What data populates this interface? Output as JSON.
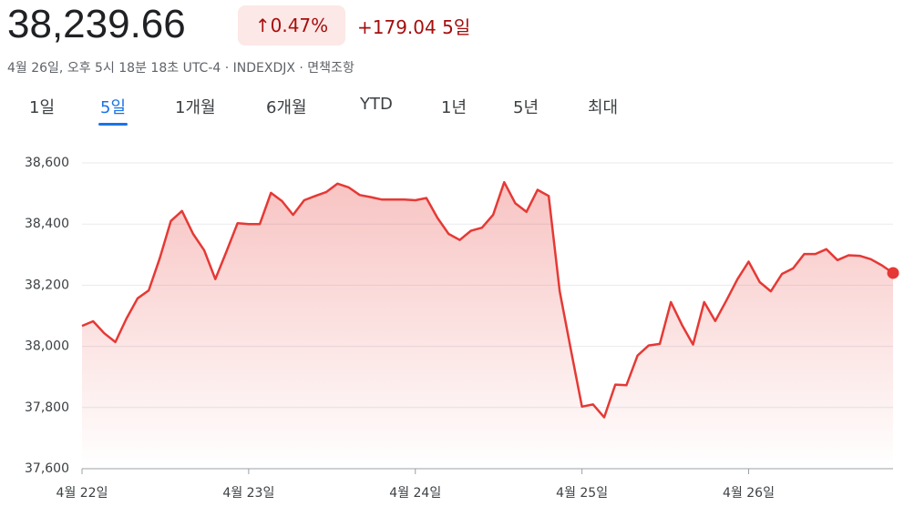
{
  "header": {
    "price": "38,239.66",
    "change_pct": "0.47%",
    "change_abs": "+179.04",
    "period": "5일",
    "meta": "4월 26일, 오후 5시 18분 18초 UTC-4 · INDEXDJX · 면책조항"
  },
  "tabs": [
    "1일",
    "5일",
    "1개월",
    "6개월",
    "YTD",
    "1년",
    "5년",
    "최대"
  ],
  "active_tab": 1,
  "chart_data": {
    "type": "line",
    "color": "#e53935",
    "grid": true,
    "categories": [
      "4월 22일",
      null,
      null,
      null,
      null,
      null,
      null,
      null,
      null,
      null,
      null,
      null,
      null,
      null,
      null,
      "4월 23일",
      null,
      null,
      null,
      null,
      null,
      null,
      null,
      null,
      null,
      null,
      null,
      null,
      null,
      null,
      "4월 24일",
      null,
      null,
      null,
      null,
      null,
      null,
      null,
      null,
      null,
      null,
      null,
      null,
      null,
      null,
      "4월 25일",
      null,
      null,
      null,
      null,
      null,
      null,
      null,
      null,
      null,
      null,
      null,
      null,
      null,
      null,
      "4월 26일",
      null,
      null,
      null,
      null,
      null,
      null,
      null,
      null,
      null,
      null,
      null,
      null,
      null
    ],
    "values": [
      38067,
      38082,
      38043,
      38014,
      38091,
      38157,
      38183,
      38288,
      38410,
      38443,
      38368,
      38314,
      38220,
      38310,
      38403,
      38400,
      38400,
      38502,
      38475,
      38430,
      38478,
      38492,
      38505,
      38532,
      38520,
      38495,
      38488,
      38480,
      38480,
      38480,
      38478,
      38485,
      38420,
      38368,
      38348,
      38378,
      38388,
      38430,
      38537,
      38468,
      38440,
      38512,
      38492,
      38180,
      37990,
      37803,
      37810,
      37768,
      37875,
      37873,
      37970,
      38003,
      38008,
      38145,
      38070,
      38006,
      38145,
      38083,
      38150,
      38220,
      38277,
      38210,
      38180,
      38237,
      38255,
      38302,
      38302,
      38318,
      38282,
      38298,
      38296,
      38285,
      38265,
      38240
    ],
    "ylim": [
      37600,
      38600
    ],
    "yticks": [
      {
        "value": 37600,
        "label": "37,600"
      },
      {
        "value": 37800,
        "label": "37,800"
      },
      {
        "value": 38000,
        "label": "38,000"
      },
      {
        "value": 38200,
        "label": "38,200"
      },
      {
        "value": 38400,
        "label": "38,400"
      },
      {
        "value": 38600,
        "label": "38,600"
      }
    ]
  }
}
